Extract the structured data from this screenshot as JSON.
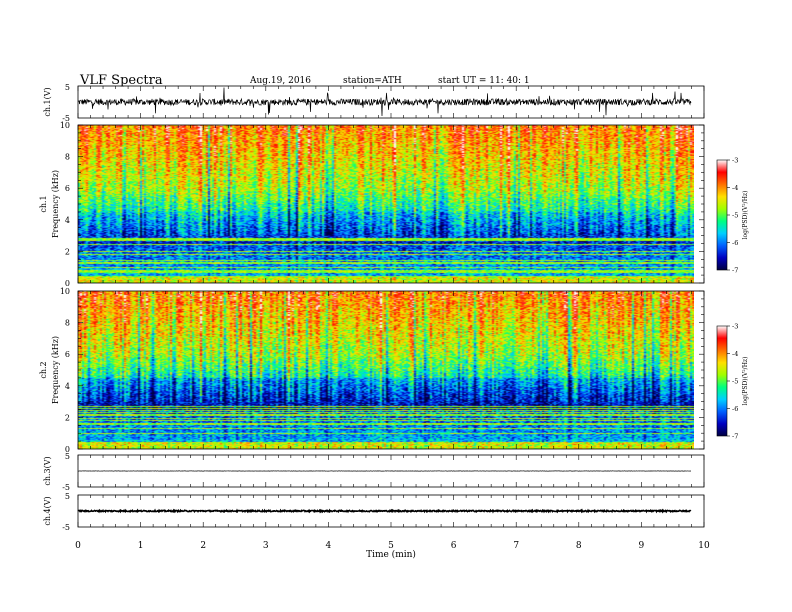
{
  "header": {
    "title": "VLF  Spectra",
    "date": "Aug.19, 2016",
    "station": "station=ATH",
    "start_time": "start  UT  =    11: 40: 1"
  },
  "chart_data": [
    {
      "type": "line",
      "panel": "ch1-waveform",
      "ylabel": "ch.1(V)",
      "ylim": [
        -5,
        5
      ],
      "yticks": [
        "5",
        "-5"
      ],
      "baseline": 0,
      "noise_amplitude": 1.0
    },
    {
      "type": "heatmap",
      "panel": "ch1-spectrogram",
      "ylabel_line1": "ch.1",
      "ylabel_line2": "Frequency  (kHz)",
      "ylim": [
        0,
        10
      ],
      "yticks": [
        "0",
        "2",
        "4",
        "6",
        "8",
        "10"
      ],
      "colorbar": {
        "label": "log(PSD)(V²/Hz)",
        "range": [
          -7,
          -3
        ],
        "ticks": [
          "-3",
          "-4",
          "-5",
          "-6",
          "-7"
        ]
      }
    },
    {
      "type": "heatmap",
      "panel": "ch2-spectrogram",
      "ylabel_line1": "ch.2",
      "ylabel_line2": "Frequency  (kHz)",
      "ylim": [
        0,
        10
      ],
      "yticks": [
        "0",
        "2",
        "4",
        "6",
        "8",
        "10"
      ],
      "colorbar": {
        "label": "log(PSD)(V²/Hz)",
        "range": [
          -7,
          -3
        ],
        "ticks": [
          "-3",
          "-4",
          "-5",
          "-6",
          "-7"
        ]
      }
    },
    {
      "type": "line",
      "panel": "ch3-waveform",
      "ylabel": "ch.3(V)",
      "ylim": [
        -5,
        5
      ],
      "yticks": [
        "5",
        "-5"
      ],
      "baseline": 0,
      "noise_amplitude": 0.05
    },
    {
      "type": "line",
      "panel": "ch4-waveform",
      "ylabel": "ch.4(V)",
      "ylim": [
        -5,
        5
      ],
      "yticks": [
        "5",
        "-5"
      ],
      "baseline": 0,
      "noise_amplitude": 0.2
    }
  ],
  "x_axis": {
    "label": "Time  (min)",
    "range": [
      0,
      10
    ],
    "data_end": 9.8,
    "ticks": [
      "0",
      "1",
      "2",
      "3",
      "4",
      "5",
      "6",
      "7",
      "8",
      "9",
      "10"
    ]
  },
  "colors": {
    "colormap": [
      "#000040",
      "#0000c0",
      "#0060ff",
      "#00d0ff",
      "#00ff80",
      "#a0ff00",
      "#ffe000",
      "#ff7000",
      "#ff0000",
      "#ffffff"
    ]
  }
}
